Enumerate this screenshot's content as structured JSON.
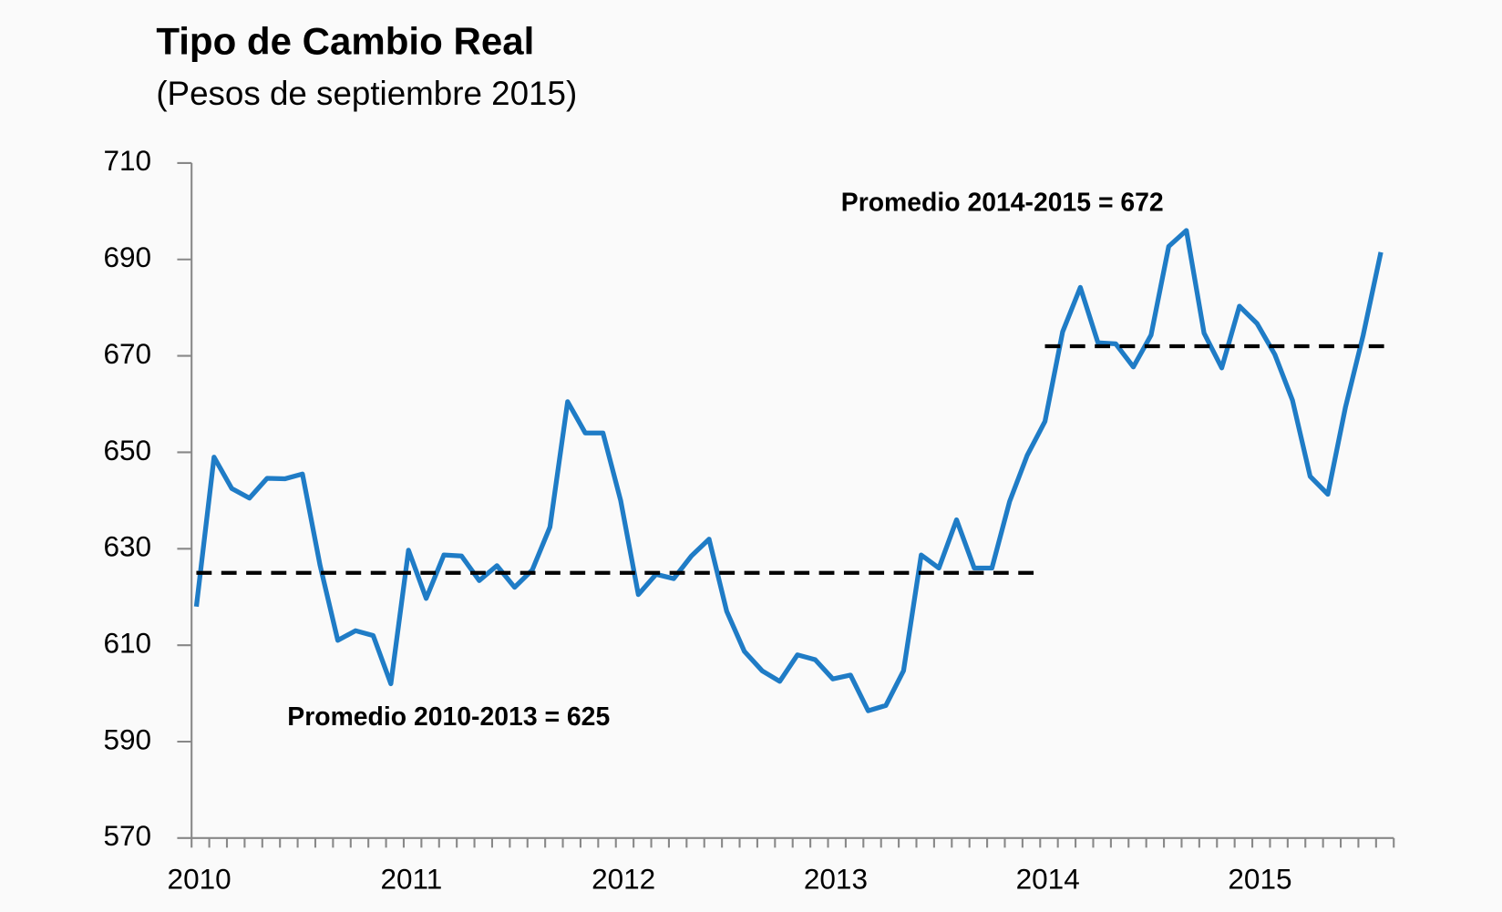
{
  "chart_data": {
    "type": "line",
    "title": "Tipo de Cambio Real",
    "subtitle": "(Pesos de septiembre 2015)",
    "categories": [
      "2010",
      null,
      null,
      null,
      null,
      null,
      null,
      null,
      null,
      null,
      null,
      null,
      "2011",
      null,
      null,
      null,
      null,
      null,
      null,
      null,
      null,
      null,
      null,
      null,
      "2012",
      null,
      null,
      null,
      null,
      null,
      null,
      null,
      null,
      null,
      null,
      null,
      "2013",
      null,
      null,
      null,
      null,
      null,
      null,
      null,
      null,
      null,
      null,
      null,
      "2014",
      null,
      null,
      null,
      null,
      null,
      null,
      null,
      null,
      null,
      null,
      null,
      "2015",
      null,
      null,
      null,
      null,
      null,
      null,
      null
    ],
    "series": [
      {
        "name": "Tipo de Cambio Real",
        "color": "#1f7cc6",
        "values": [
          618,
          649,
          642.5,
          640.5,
          644.6,
          644.5,
          645.5,
          626.5,
          611,
          613,
          612,
          602,
          629.7,
          619.7,
          628.7,
          628.5,
          623.4,
          626.5,
          622,
          625.6,
          634.5,
          660.5,
          654,
          654,
          640,
          620.5,
          624.7,
          623.8,
          628.5,
          632,
          617,
          608.7,
          604.7,
          602.5,
          608,
          607,
          603,
          603.8,
          596.4,
          597.5,
          604.7,
          628.7,
          626,
          636,
          626,
          626,
          639.8,
          649.4,
          656.4,
          675,
          684.2,
          672.7,
          672.5,
          667.7,
          674.3,
          692.7,
          696,
          674.7,
          667.5,
          680.3,
          676.7,
          670.3,
          660.8,
          645,
          641.3,
          659.4,
          674.3,
          691.5
        ]
      }
    ],
    "reference_lines": [
      {
        "label": "Promedio 2010-2013 = 625",
        "value": 625,
        "x_range": [
          0,
          47
        ]
      },
      {
        "label": "Promedio 2014-2015 = 672",
        "value": 672,
        "x_range": [
          48,
          67
        ]
      }
    ],
    "ylim": [
      570,
      710
    ],
    "yticks": [
      570,
      590,
      610,
      630,
      650,
      670,
      690,
      710
    ]
  }
}
